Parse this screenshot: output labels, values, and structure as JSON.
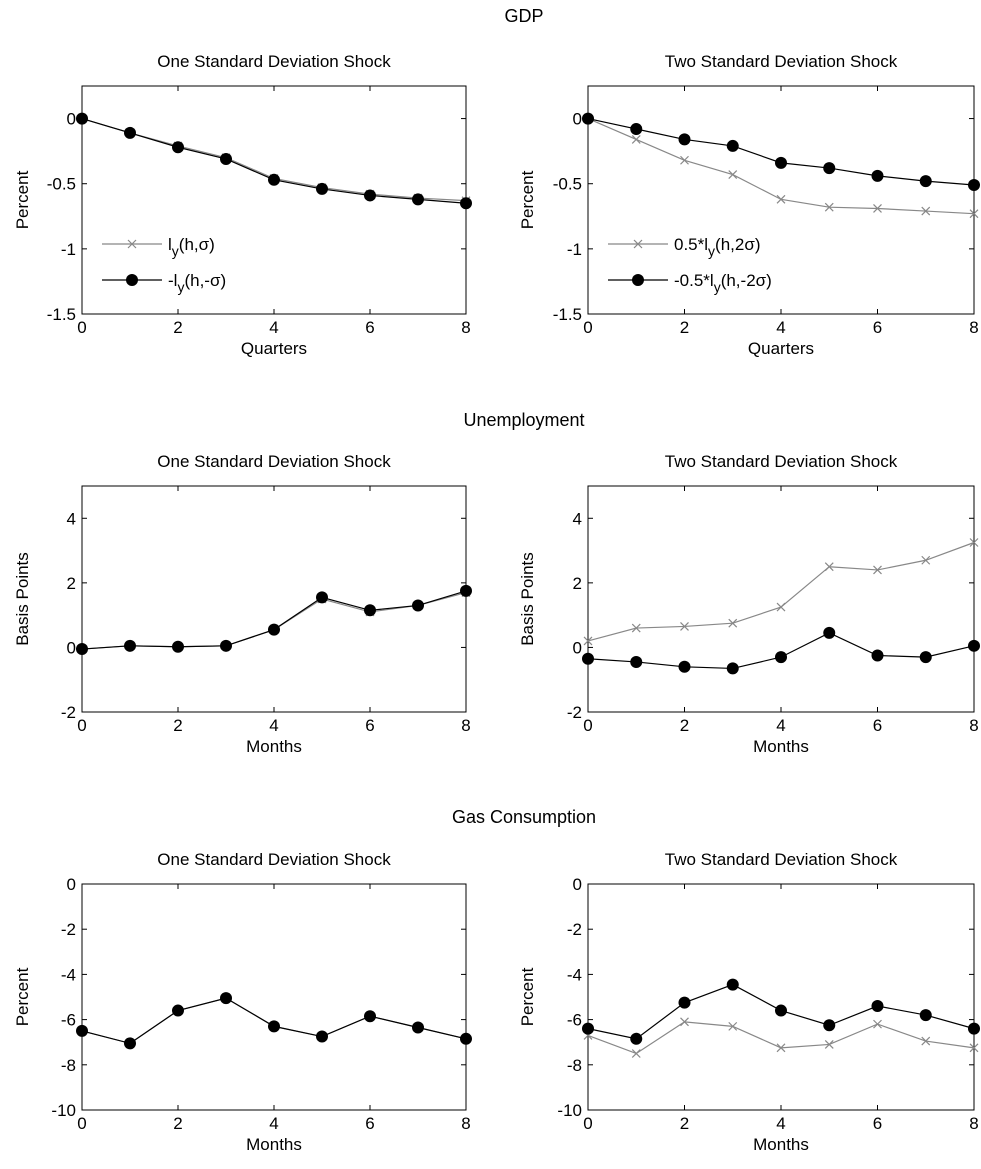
{
  "sections": [
    {
      "title": "GDP"
    },
    {
      "title": "Unemployment"
    },
    {
      "title": "Gas Consumption"
    }
  ],
  "chart_data": [
    {
      "type": "line",
      "title": "One Standard Deviation Shock",
      "xlabel": "Quarters",
      "ylabel": "Percent",
      "xlim": [
        0,
        8
      ],
      "ylim": [
        -1.5,
        0.25
      ],
      "xticks": [
        "0",
        "2",
        "4",
        "6",
        "8"
      ],
      "yticks": [
        "0",
        "-0.5",
        "-1",
        "-1.5"
      ],
      "ytick_values": [
        0,
        -0.5,
        -1,
        -1.5
      ],
      "legend_position": "bottom-left",
      "x": [
        0,
        1,
        2,
        3,
        4,
        5,
        6,
        7,
        8
      ],
      "series": [
        {
          "name": "ly(h,σ)",
          "label_main": "l",
          "label_sub": "y",
          "label_rest": "(h,σ)",
          "marker": "x",
          "values": [
            0,
            -0.11,
            -0.21,
            -0.3,
            -0.46,
            -0.53,
            -0.58,
            -0.61,
            -0.63
          ]
        },
        {
          "name": "-ly(h,-σ)",
          "label_main": "-l",
          "label_sub": "y",
          "label_rest": "(h,-σ)",
          "marker": "dot",
          "values": [
            0,
            -0.11,
            -0.22,
            -0.31,
            -0.47,
            -0.54,
            -0.59,
            -0.62,
            -0.65
          ]
        }
      ]
    },
    {
      "type": "line",
      "title": "Two Standard Deviation Shock",
      "xlabel": "Quarters",
      "ylabel": "Percent",
      "xlim": [
        0,
        8
      ],
      "ylim": [
        -1.5,
        0.25
      ],
      "xticks": [
        "0",
        "2",
        "4",
        "6",
        "8"
      ],
      "yticks": [
        "0",
        "-0.5",
        "-1",
        "-1.5"
      ],
      "ytick_values": [
        0,
        -0.5,
        -1,
        -1.5
      ],
      "legend_position": "bottom-left",
      "x": [
        0,
        1,
        2,
        3,
        4,
        5,
        6,
        7,
        8
      ],
      "series": [
        {
          "name": "0.5*ly(h,2σ)",
          "label_main": "0.5*l",
          "label_sub": "y",
          "label_rest": "(h,2σ)",
          "marker": "x",
          "values": [
            0,
            -0.16,
            -0.32,
            -0.43,
            -0.62,
            -0.68,
            -0.69,
            -0.71,
            -0.73
          ]
        },
        {
          "name": "-0.5*ly(h,-2σ)",
          "label_main": "-0.5*l",
          "label_sub": "y",
          "label_rest": "(h,-2σ)",
          "marker": "dot",
          "values": [
            0,
            -0.08,
            -0.16,
            -0.21,
            -0.34,
            -0.38,
            -0.44,
            -0.48,
            -0.51
          ]
        }
      ]
    },
    {
      "type": "line",
      "title": "One Standard Deviation Shock",
      "xlabel": "Months",
      "ylabel": "Basis Points",
      "xlim": [
        0,
        8
      ],
      "ylim": [
        -2,
        5
      ],
      "xticks": [
        "0",
        "2",
        "4",
        "6",
        "8"
      ],
      "yticks": [
        "4",
        "2",
        "0",
        "-2"
      ],
      "ytick_values": [
        4,
        2,
        0,
        -2
      ],
      "legend_position": "none",
      "x": [
        0,
        1,
        2,
        3,
        4,
        5,
        6,
        7,
        8
      ],
      "series": [
        {
          "marker": "x",
          "values": [
            -0.05,
            0.05,
            0.02,
            0.05,
            0.55,
            1.5,
            1.1,
            1.3,
            1.7
          ]
        },
        {
          "marker": "dot",
          "values": [
            -0.05,
            0.05,
            0.02,
            0.05,
            0.55,
            1.55,
            1.15,
            1.3,
            1.75
          ]
        }
      ]
    },
    {
      "type": "line",
      "title": "Two Standard Deviation Shock",
      "xlabel": "Months",
      "ylabel": "Basis Points",
      "xlim": [
        0,
        8
      ],
      "ylim": [
        -2,
        5
      ],
      "xticks": [
        "0",
        "2",
        "4",
        "6",
        "8"
      ],
      "yticks": [
        "4",
        "2",
        "0",
        "-2"
      ],
      "ytick_values": [
        4,
        2,
        0,
        -2
      ],
      "legend_position": "none",
      "x": [
        0,
        1,
        2,
        3,
        4,
        5,
        6,
        7,
        8
      ],
      "series": [
        {
          "marker": "x",
          "values": [
            0.2,
            0.6,
            0.65,
            0.75,
            1.25,
            2.5,
            2.4,
            2.7,
            3.25
          ]
        },
        {
          "marker": "dot",
          "values": [
            -0.35,
            -0.45,
            -0.6,
            -0.65,
            -0.3,
            0.45,
            -0.25,
            -0.3,
            0.05
          ]
        }
      ]
    },
    {
      "type": "line",
      "title": "One Standard Deviation Shock",
      "xlabel": "Months",
      "ylabel": "Percent",
      "xlim": [
        0,
        8
      ],
      "ylim": [
        -10,
        0
      ],
      "xticks": [
        "0",
        "2",
        "4",
        "6",
        "8"
      ],
      "yticks": [
        "0",
        "-2",
        "-4",
        "-6",
        "-8",
        "-10"
      ],
      "ytick_values": [
        0,
        -2,
        -4,
        -6,
        -8,
        -10
      ],
      "legend_position": "none",
      "x": [
        0,
        1,
        2,
        3,
        4,
        5,
        6,
        7,
        8
      ],
      "series": [
        {
          "marker": "x",
          "values": [
            -6.5,
            -7.05,
            -5.6,
            -5.05,
            -6.3,
            -6.75,
            -5.85,
            -6.35,
            -6.85
          ]
        },
        {
          "marker": "dot",
          "values": [
            -6.5,
            -7.05,
            -5.6,
            -5.05,
            -6.3,
            -6.75,
            -5.85,
            -6.35,
            -6.85
          ]
        }
      ]
    },
    {
      "type": "line",
      "title": "Two Standard Deviation Shock",
      "xlabel": "Months",
      "ylabel": "Percent",
      "xlim": [
        0,
        8
      ],
      "ylim": [
        -10,
        0
      ],
      "xticks": [
        "0",
        "2",
        "4",
        "6",
        "8"
      ],
      "yticks": [
        "0",
        "-2",
        "-4",
        "-6",
        "-8",
        "-10"
      ],
      "ytick_values": [
        0,
        -2,
        -4,
        -6,
        -8,
        -10
      ],
      "legend_position": "none",
      "x": [
        0,
        1,
        2,
        3,
        4,
        5,
        6,
        7,
        8
      ],
      "series": [
        {
          "marker": "x",
          "values": [
            -6.7,
            -7.5,
            -6.1,
            -6.3,
            -7.25,
            -7.1,
            -6.2,
            -6.95,
            -7.25
          ]
        },
        {
          "marker": "dot",
          "values": [
            -6.4,
            -6.85,
            -5.25,
            -4.45,
            -5.6,
            -6.25,
            -5.4,
            -5.8,
            -6.4
          ]
        }
      ]
    }
  ]
}
